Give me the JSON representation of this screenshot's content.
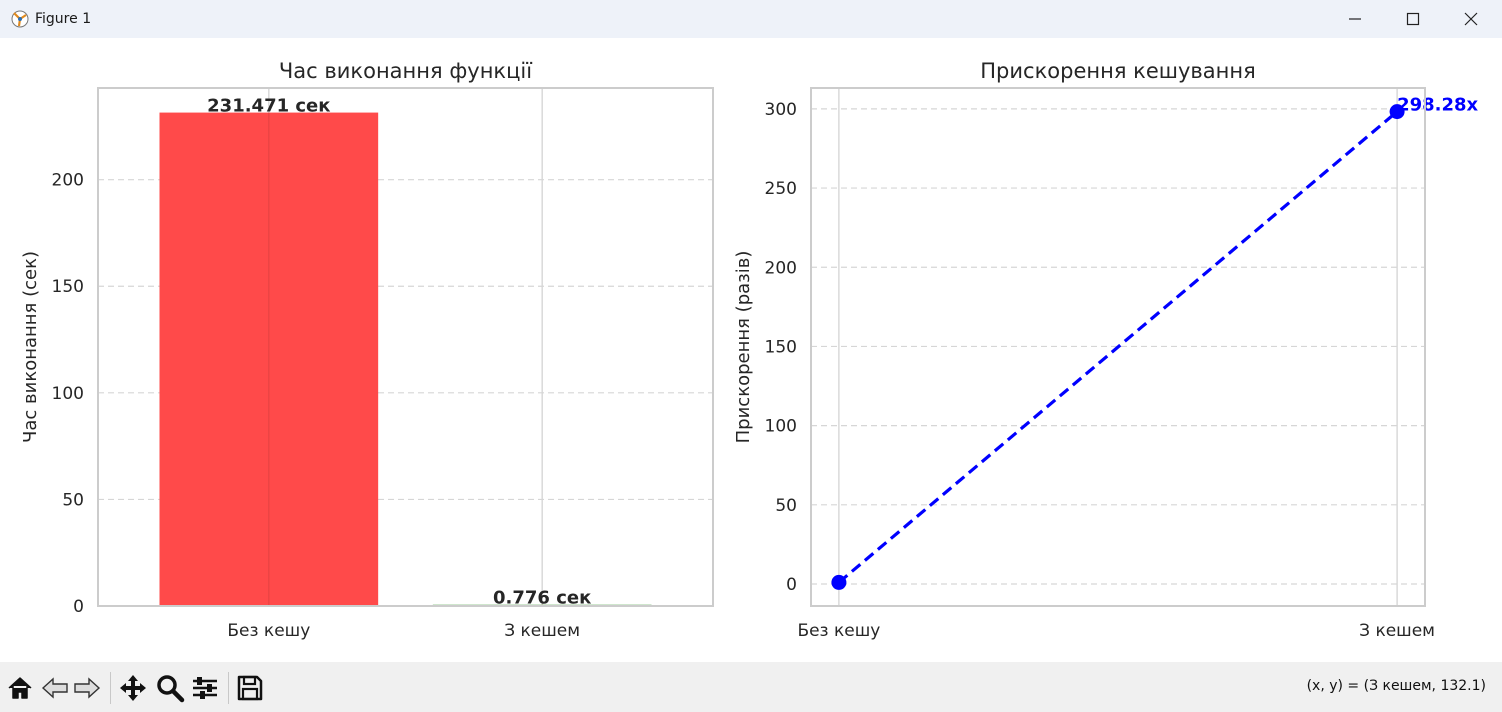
{
  "window": {
    "title": "Figure 1"
  },
  "toolbar": {
    "buttons": [
      "home",
      "back",
      "forward",
      "pan",
      "zoom",
      "configure-subplots",
      "save"
    ],
    "coord_readout": "(x, y) = (З кешем, 132.1)"
  },
  "chart_data": [
    {
      "type": "bar",
      "title": "Час виконання функції",
      "xlabel": "",
      "ylabel": "Час виконання (сек)",
      "categories": [
        "Без кешу",
        "З кешем"
      ],
      "values": [
        231.471,
        0.776
      ],
      "data_labels": [
        "231.471 сек",
        "0.776 сек"
      ],
      "colors": [
        "#ff4a4a",
        "#b6d9b3"
      ],
      "ylim": [
        0,
        243
      ],
      "yticks": [
        0,
        50,
        100,
        150,
        200
      ],
      "grid": "y-dashed"
    },
    {
      "type": "line",
      "title": "Прискорення кешування",
      "xlabel": "",
      "ylabel": "Прискорення (разів)",
      "categories": [
        "Без кешу",
        "З кешем"
      ],
      "series": [
        {
          "name": "Прискорення",
          "values": [
            1,
            298.28
          ],
          "color": "#0000ff",
          "style": "dashed-marker"
        }
      ],
      "data_labels": [
        "",
        "298.28x"
      ],
      "ylim": [
        -13.9,
        313.2
      ],
      "yticks": [
        0,
        50,
        100,
        150,
        200,
        250,
        300
      ],
      "grid": "y-dashed"
    }
  ]
}
